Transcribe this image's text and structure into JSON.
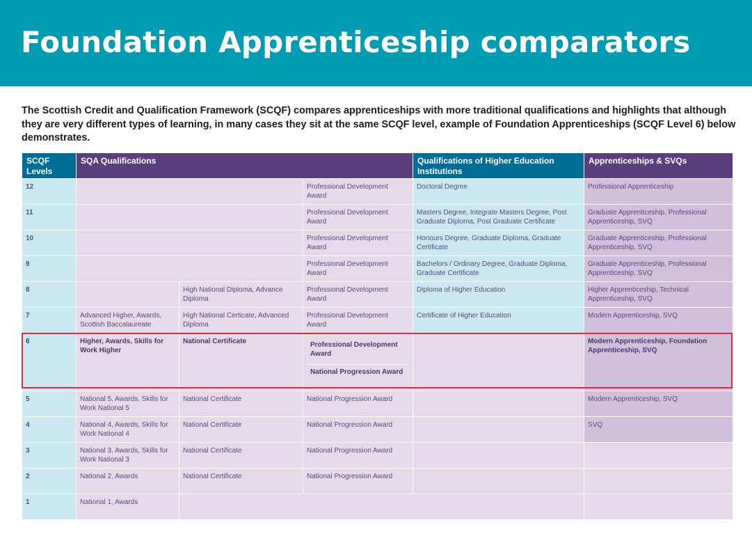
{
  "title": "Foundation Apprenticeship comparators",
  "intro": "The Scottish Credit and Qualification Framework (SCQF) compares apprenticeships with more traditional qualifications and highlights that although they are very different types of learning, in many cases they sit at the same SCQF level, example of Foundation Apprenticeships (SCQF Level 6) below demonstrates.",
  "table": {
    "headers": {
      "levels": "SCQF Levels",
      "sqa": "SQA Qualifications",
      "he": "Qualifications of Higher Education Institutions",
      "app": "Apprenticeships & SVQs"
    },
    "rows": {
      "l12": {
        "level": "12",
        "c3": "Professional Development Award",
        "he": "Doctoral Degree",
        "app": "Professional Apprenticeship"
      },
      "l11": {
        "level": "11",
        "c3": "Professional Development Award",
        "he": "Masters Degree, Integrate Masters Degree, Post Graduate Diploma, Post Graduate Certificate",
        "app": "Graduate Apprenticeship, Professional Apprenticeship, SVQ"
      },
      "l10": {
        "level": "10",
        "c3": "Professional Development Award",
        "he": "Honours Degree, Graduate Diploma, Graduate Certificate",
        "app": "Graduate Apprenticeship, Professional Apprenticeship, SVQ"
      },
      "l9": {
        "level": "9",
        "c3": "Professional Development Award",
        "he": "Bachelors / Ordinary Degree, Graduate Diploma, Graduate Certificate",
        "app": "Graduate Apprenticeship, Professional Apprenticeship, SVQ"
      },
      "l8": {
        "level": "8",
        "c2": "High National Diploma, Advance Diploma",
        "c3": "Professional Development Award",
        "he": "Diploma of Higher Education",
        "app": "Higher Apprenticeship, Technical Apprenticeship, SVQ"
      },
      "l7": {
        "level": "7",
        "c1": "Advanced Higher, Awards, Scottish Baccalaureate",
        "c2": "High National Certicate, Advanced Diploma",
        "c3": "Professional Development Award",
        "he": "Certificate of Higher Education",
        "app": "Modern Apprenticeship, SVQ"
      },
      "l6": {
        "level": "6",
        "c1": "Higher, Awards, Skills for Work Higher",
        "c2": "National Certificate",
        "c3a": "Professional Development Award",
        "c3b": "National Progression Award",
        "app": "Modern Apprenticeship, Foundation Apprenticeship, SVQ"
      },
      "l5": {
        "level": "5",
        "c1": "National 5, Awards, Skills for Work National 5",
        "c2": "National Certificate",
        "c3": "National Progression Award",
        "app": "Modern Apprenticeship, SVQ"
      },
      "l4": {
        "level": "4",
        "c1": "National 4, Awards, Skills for Work National 4",
        "c2": "National Certificate",
        "c3": "National Progression Award",
        "app": "SVQ"
      },
      "l3": {
        "level": "3",
        "c1": "National 3, Awards, Skills for Work National 3",
        "c2": "National Certificate",
        "c3": "National Progression Award"
      },
      "l2": {
        "level": "2",
        "c1": "National 2, Awards",
        "c2": "National Certificate",
        "c3": "National Progression Award"
      },
      "l1": {
        "level": "1",
        "c1": "National 1, Awards"
      }
    }
  },
  "colors": {
    "banner": "#009cb4",
    "header_purple": "#5b3f7d",
    "header_blue": "#006d96",
    "cell_lavender": "#e5d9ea",
    "cell_blue": "#c9e8f2",
    "cell_app": "#d2bfdc",
    "highlight": "#e3263a"
  }
}
